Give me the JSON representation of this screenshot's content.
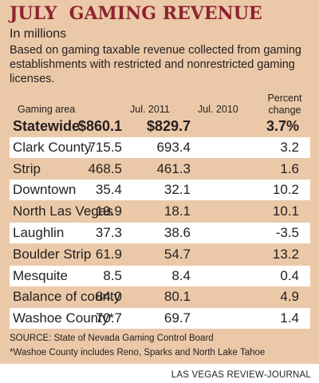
{
  "chart_data": {
    "type": "table",
    "title": "JULY  GAMING REVENUE",
    "subtitle": "In millions",
    "description": "Based on gaming taxable revenue collected from gaming establishments with restricted and nonrestricted gaming licenses.",
    "columns": {
      "area": "Gaming area",
      "y2011": "Jul. 2011",
      "y2010": "Jul. 2010",
      "change": "Percent change"
    },
    "rows": [
      {
        "area": "Statewide",
        "y2011": "$860.1",
        "y2010": "$829.7",
        "change": "3.7%"
      },
      {
        "area": "Clark County",
        "y2011": "715.5",
        "y2010": "693.4",
        "change": "3.2"
      },
      {
        "area": "Strip",
        "y2011": "468.5",
        "y2010": "461.3",
        "change": "1.6"
      },
      {
        "area": "Downtown",
        "y2011": "35.4",
        "y2010": "32.1",
        "change": "10.2"
      },
      {
        "area": "North Las Vegas",
        "y2011": "19.9",
        "y2010": "18.1",
        "change": "10.1"
      },
      {
        "area": "Laughlin",
        "y2011": "37.3",
        "y2010": "38.6",
        "change": "-3.5"
      },
      {
        "area": "Boulder Strip",
        "y2011": "61.9",
        "y2010": "54.7",
        "change": "13.2"
      },
      {
        "area": "Mesquite",
        "y2011": "8.5",
        "y2010": "8.4",
        "change": "0.4"
      },
      {
        "area": "Balance of county",
        "y2011": "84.0",
        "y2010": "80.1",
        "change": "4.9"
      },
      {
        "area": "Washoe County*",
        "y2011": "70.7",
        "y2010": "69.7",
        "change": "1.4"
      }
    ],
    "source": "SOURCE: State of Nevada Gaming Control Board",
    "footnote": "*Washoe County includes Reno, Sparks and North Lake Tahoe"
  },
  "credit": "LAS VEGAS REVIEW-JOURNAL",
  "colors": {
    "title": "#8e2430",
    "panel": "#ebc9a8",
    "row_box": "#ffffff",
    "text": "#231f20"
  }
}
